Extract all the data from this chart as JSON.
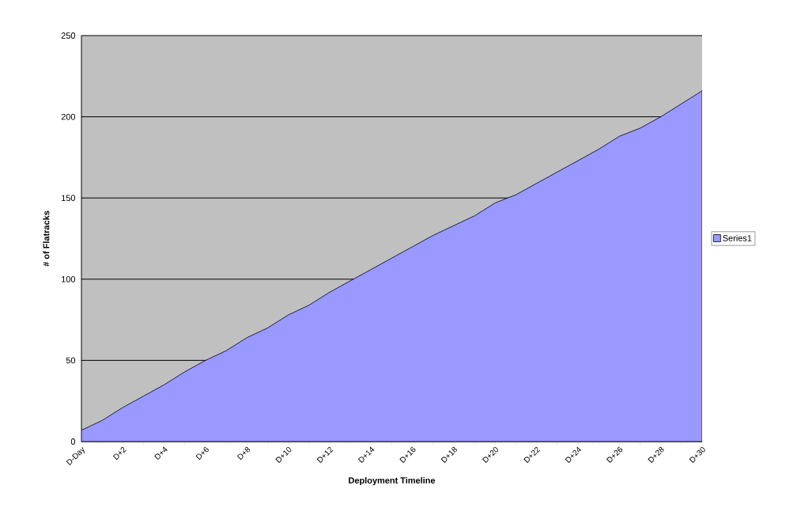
{
  "chart_data": {
    "type": "area",
    "xlabel": "Deployment Timeline",
    "ylabel": "# of Flatracks",
    "categories": [
      "D-Day",
      null,
      "D+2",
      null,
      "D+4",
      null,
      "D+6",
      null,
      "D+8",
      null,
      "D+10",
      null,
      "D+12",
      null,
      "D+14",
      null,
      "D+16",
      null,
      "D+18",
      null,
      "D+20",
      null,
      "D+22",
      null,
      "D+24",
      null,
      "D+26",
      null,
      "D+28",
      null,
      "D+30"
    ],
    "series": [
      {
        "name": "Series1",
        "color": "#9999ff",
        "values": [
          7,
          13,
          21,
          28,
          35,
          43,
          50,
          56,
          64,
          70,
          78,
          84,
          92,
          99,
          106,
          113,
          120,
          127,
          133,
          139,
          147,
          152,
          159,
          166,
          173,
          180,
          188,
          193,
          200,
          208,
          216
        ]
      }
    ],
    "ylim": [
      0,
      250
    ],
    "yticks": [
      0,
      50,
      100,
      150,
      200,
      250
    ],
    "grid": "y",
    "legend": "right"
  }
}
